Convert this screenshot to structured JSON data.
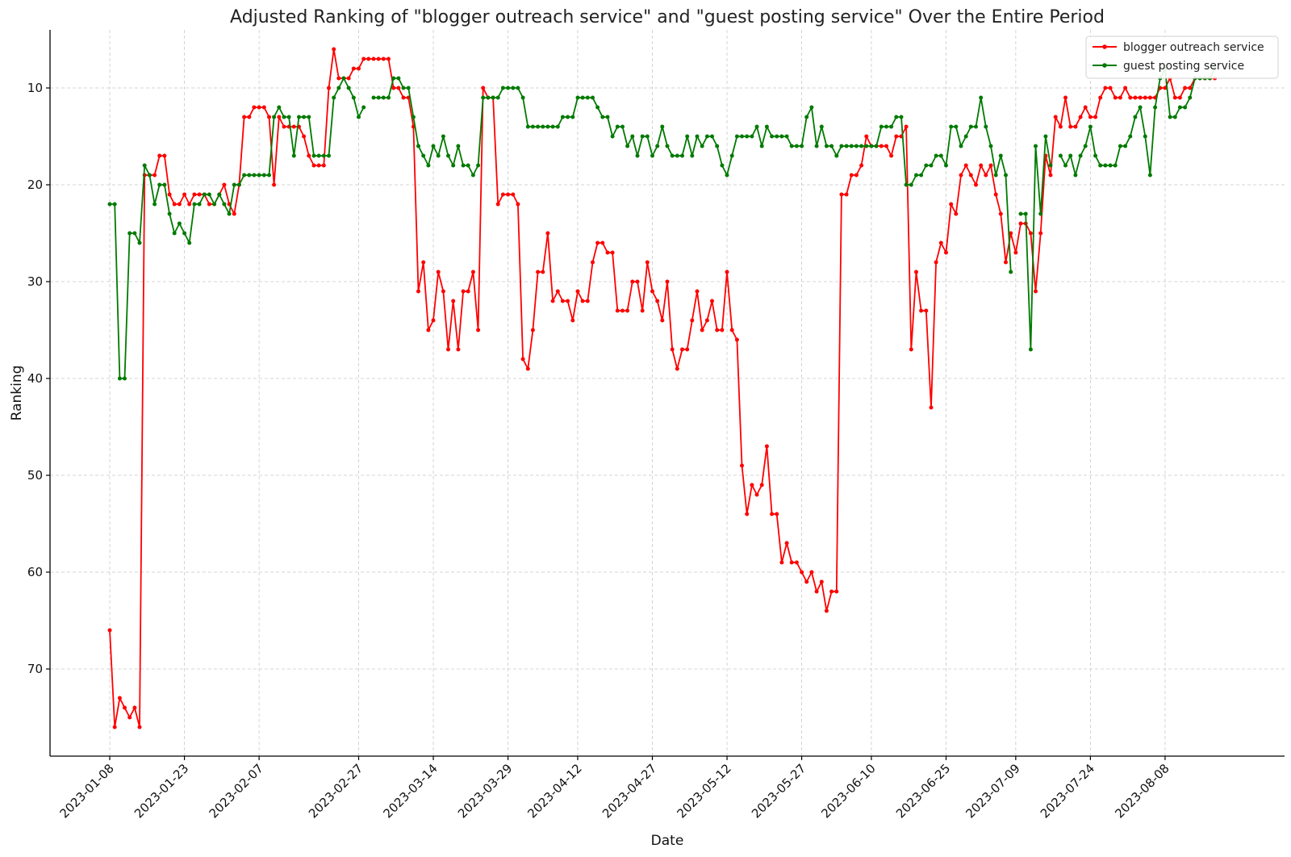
{
  "chart_data": {
    "type": "line",
    "title": "Adjusted Ranking of \"blogger outreach service\" and \"guest posting service\" Over the Entire Period",
    "xlabel": "Date",
    "ylabel": "Ranking",
    "y_inverted": true,
    "ylim": [
      79,
      4
    ],
    "xlim": [
      "2022-12-27",
      "2023-09-01"
    ],
    "x_tick_labels": [
      "2023-01-08",
      "2023-01-23",
      "2023-02-07",
      "2023-02-27",
      "2023-03-14",
      "2023-03-29",
      "2023-04-12",
      "2023-04-27",
      "2023-05-12",
      "2023-05-27",
      "2023-06-10",
      "2023-06-25",
      "2023-07-09",
      "2023-07-24",
      "2023-08-08"
    ],
    "y_tick_labels": [
      "10",
      "20",
      "30",
      "40",
      "50",
      "60",
      "70"
    ],
    "grid": true,
    "legend_position": "top-right",
    "series": [
      {
        "name": "blogger outreach service",
        "color": "#ff0000",
        "start_date": "2023-01-08",
        "values": [
          66,
          76,
          73,
          74,
          75,
          74,
          76,
          19,
          19,
          19,
          17,
          17,
          21,
          22,
          22,
          21,
          22,
          21,
          21,
          21,
          22,
          22,
          21,
          20,
          22,
          23,
          20,
          13,
          13,
          12,
          12,
          12,
          13,
          20,
          13,
          14,
          14,
          14,
          14,
          15,
          17,
          18,
          18,
          18,
          10,
          6,
          9,
          9,
          9,
          8,
          8,
          7,
          7,
          7,
          7,
          7,
          7,
          10,
          10,
          11,
          11,
          14,
          31,
          28,
          35,
          34,
          29,
          31,
          37,
          32,
          37,
          31,
          31,
          29,
          35,
          10,
          11,
          11,
          22,
          21,
          21,
          21,
          22,
          38,
          39,
          35,
          29,
          29,
          25,
          32,
          31,
          32,
          32,
          34,
          31,
          32,
          32,
          28,
          26,
          26,
          27,
          27,
          33,
          33,
          33,
          30,
          30,
          33,
          28,
          31,
          32,
          34,
          30,
          37,
          39,
          37,
          37,
          34,
          31,
          35,
          34,
          32,
          35,
          35,
          29,
          35,
          36,
          49,
          54,
          51,
          52,
          51,
          47,
          54,
          54,
          59,
          57,
          59,
          59,
          60,
          61,
          60,
          62,
          61,
          64,
          62,
          62,
          21,
          21,
          19,
          19,
          18,
          15,
          16,
          16,
          16,
          16,
          17,
          15,
          15,
          14,
          37,
          29,
          33,
          33,
          43,
          28,
          26,
          27,
          22,
          23,
          19,
          18,
          19,
          20,
          18,
          19,
          18,
          21,
          23,
          28,
          25,
          27,
          24,
          24,
          25,
          31,
          25,
          17,
          19,
          13,
          14,
          11,
          14,
          14,
          13,
          12,
          13,
          13,
          11,
          10,
          10,
          11,
          11,
          10,
          11,
          11,
          11,
          11,
          11,
          11,
          10,
          10,
          9,
          11,
          11,
          10,
          10,
          9,
          9,
          9,
          9,
          9
        ],
        "gaps": []
      },
      {
        "name": "guest posting service",
        "color": "#007a00",
        "start_date": "2023-01-08",
        "values": [
          22,
          22,
          40,
          40,
          25,
          25,
          26,
          18,
          19,
          22,
          20,
          20,
          23,
          25,
          24,
          25,
          26,
          22,
          22,
          21,
          21,
          22,
          21,
          22,
          23,
          20,
          20,
          19,
          19,
          19,
          19,
          19,
          19,
          13,
          12,
          13,
          13,
          17,
          13,
          13,
          13,
          17,
          17,
          17,
          17,
          11,
          10,
          9,
          10,
          11,
          13,
          12,
          null,
          11,
          11,
          11,
          11,
          9,
          9,
          10,
          10,
          13,
          16,
          17,
          18,
          16,
          17,
          15,
          17,
          18,
          16,
          18,
          18,
          19,
          18,
          11,
          11,
          11,
          11,
          10,
          10,
          10,
          10,
          11,
          14,
          14,
          14,
          14,
          14,
          14,
          14,
          13,
          13,
          13,
          11,
          11,
          11,
          11,
          12,
          13,
          13,
          15,
          14,
          14,
          16,
          15,
          17,
          15,
          15,
          17,
          16,
          14,
          16,
          17,
          17,
          17,
          15,
          17,
          15,
          16,
          15,
          15,
          16,
          18,
          19,
          17,
          15,
          15,
          15,
          15,
          14,
          16,
          14,
          15,
          15,
          15,
          15,
          16,
          16,
          16,
          13,
          12,
          16,
          14,
          16,
          16,
          17,
          16,
          16,
          16,
          16,
          16,
          16,
          16,
          16,
          14,
          14,
          14,
          13,
          13,
          20,
          20,
          19,
          19,
          18,
          18,
          17,
          17,
          18,
          14,
          14,
          16,
          15,
          14,
          14,
          11,
          14,
          16,
          19,
          17,
          19,
          29,
          null,
          23,
          23,
          37,
          16,
          23,
          15,
          18,
          null,
          17,
          18,
          17,
          19,
          17,
          16,
          14,
          17,
          18,
          18,
          18,
          18,
          16,
          16,
          15,
          13,
          12,
          15,
          19,
          12,
          9,
          8,
          13,
          13,
          12,
          12,
          11,
          9,
          9,
          9,
          9,
          8
        ]
      }
    ]
  }
}
